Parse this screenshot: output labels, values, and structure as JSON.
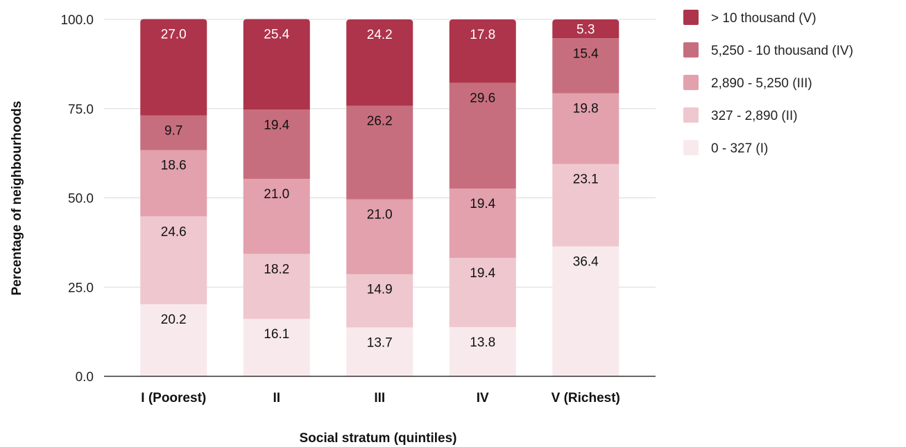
{
  "chart_data": {
    "type": "bar",
    "stacked": true,
    "title": "",
    "xlabel": "Social stratum (quintiles)",
    "ylabel": "Percentage of neighbourhoods",
    "ylim": [
      0,
      100
    ],
    "yticks": [
      "0.0",
      "25.0",
      "50.0",
      "75.0",
      "100.0"
    ],
    "ytick_values": [
      0,
      25,
      50,
      75,
      100
    ],
    "grid": true,
    "legend_position": "right",
    "categories": [
      "I (Poorest)",
      "II",
      "III",
      "IV",
      "V (Richest)"
    ],
    "series": [
      {
        "name": "0 - 327 (I)",
        "color": "#f8eaec",
        "label_color": "#111111",
        "values": [
          20.2,
          16.1,
          13.7,
          13.8,
          36.4
        ]
      },
      {
        "name": "327 - 2,890 (II)",
        "color": "#efc7cf",
        "label_color": "#111111",
        "values": [
          24.6,
          18.2,
          14.9,
          19.4,
          23.1
        ]
      },
      {
        "name": "2,890 - 5,250 (III)",
        "color": "#e2a1ad",
        "label_color": "#111111",
        "values": [
          18.6,
          21.0,
          21.0,
          19.4,
          19.8
        ]
      },
      {
        "name": "5,250 - 10 thousand (IV)",
        "color": "#c76e7e",
        "label_color": "#111111",
        "values": [
          9.7,
          19.4,
          26.2,
          29.6,
          15.4
        ]
      },
      {
        "name": "> 10 thousand (V)",
        "color": "#ad344b",
        "label_color": "#ffffff",
        "values": [
          27.0,
          25.4,
          24.2,
          17.8,
          5.3
        ]
      }
    ],
    "legend_order": [
      4,
      3,
      2,
      1,
      0
    ]
  }
}
